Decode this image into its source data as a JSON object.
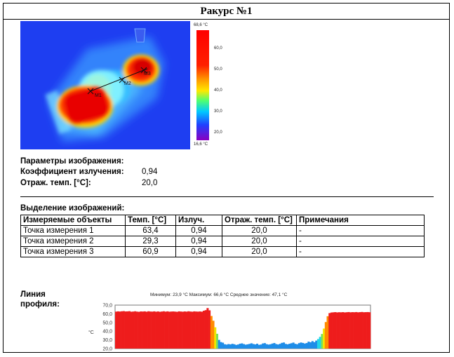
{
  "title": "Ракурс №1",
  "scale": {
    "max_label": "68,6 °C",
    "min_label": "16,6 °C",
    "ticks": [
      "60,0",
      "50,0",
      "40,0",
      "30,0",
      "20,0"
    ]
  },
  "image_params": {
    "heading": "Параметры изображения:",
    "emissivity_label": "Коэффициент излучения:",
    "emissivity_value": "0,94",
    "reflected_label": "Отраж. темп. [°C]:",
    "reflected_value": "20,0"
  },
  "markers": [
    "M1",
    "M2",
    "M3"
  ],
  "selection": {
    "heading": "Выделение изображений:",
    "columns": [
      "Измеряемые объекты",
      "Темп. [°C]",
      "Излуч.",
      "Отраж. темп. [°C]",
      "Примечания"
    ],
    "rows": [
      [
        "Точка измерения 1",
        "63,4",
        "0,94",
        "20,0",
        "-"
      ],
      [
        "Точка измерения 2",
        "29,3",
        "0,94",
        "20,0",
        "-"
      ],
      [
        "Точка измерения 3",
        "60,9",
        "0,94",
        "20,0",
        "-"
      ]
    ]
  },
  "profile": {
    "label_line1": "Линия",
    "label_line2": "профиля:",
    "stats": "Минимум: 23,9 °C Максимум: 66,6 °C Среднее значение: 47,1 °C",
    "unit": "°C"
  },
  "chart_data": {
    "type": "bar",
    "title": "",
    "ylabel": "°C",
    "ylim": [
      20,
      70
    ],
    "yticks": [
      "70,0",
      "60,0",
      "50,0",
      "40,0",
      "30,0",
      "20,0"
    ],
    "values": [
      62.5,
      62.8,
      62.6,
      62.9,
      63.1,
      62.7,
      62.8,
      63.0,
      62.4,
      62.6,
      62.9,
      62.5,
      62.3,
      62.7,
      62.6,
      62.8,
      62.4,
      62.9,
      62.6,
      62.5,
      62.8,
      62.4,
      62.7,
      62.3,
      62.6,
      62.9,
      62.5,
      62.8,
      62.4,
      62.6,
      62.7,
      62.5,
      62.3,
      62.8,
      62.6,
      62.4,
      62.7,
      62.5,
      62.9,
      62.6,
      62.4,
      62.8,
      62.6,
      62.5,
      62.7,
      62.4,
      63.5,
      64.2,
      66.6,
      64.0,
      57.5,
      52.0,
      44.5,
      37.0,
      30.0,
      27.5,
      26.8,
      25.0,
      24.6,
      25.2,
      24.8,
      25.5,
      25.0,
      24.2,
      24.7,
      25.6,
      26.0,
      25.2,
      24.5,
      24.9,
      25.4,
      26.1,
      25.3,
      24.8,
      25.6,
      24.3,
      24.7,
      25.9,
      26.3,
      25.1,
      24.6,
      25.0,
      25.8,
      26.4,
      25.2,
      24.7,
      25.5,
      26.6,
      27.0,
      25.4,
      24.9,
      25.6,
      26.2,
      26.9,
      25.5,
      25.0,
      26.3,
      27.0,
      26.5,
      25.8,
      26.4,
      28.0,
      27.2,
      28.6,
      27.4,
      29.2,
      31.0,
      33.5,
      36.8,
      43.0,
      50.5,
      57.2,
      60.8,
      61.5,
      61.7,
      61.9,
      61.6,
      61.8,
      61.7,
      61.9,
      61.6,
      61.8,
      62.0,
      61.7,
      61.9,
      61.8,
      62.0,
      61.7,
      61.9,
      62.1,
      61.8,
      61.9,
      62.0,
      61.8
    ]
  }
}
